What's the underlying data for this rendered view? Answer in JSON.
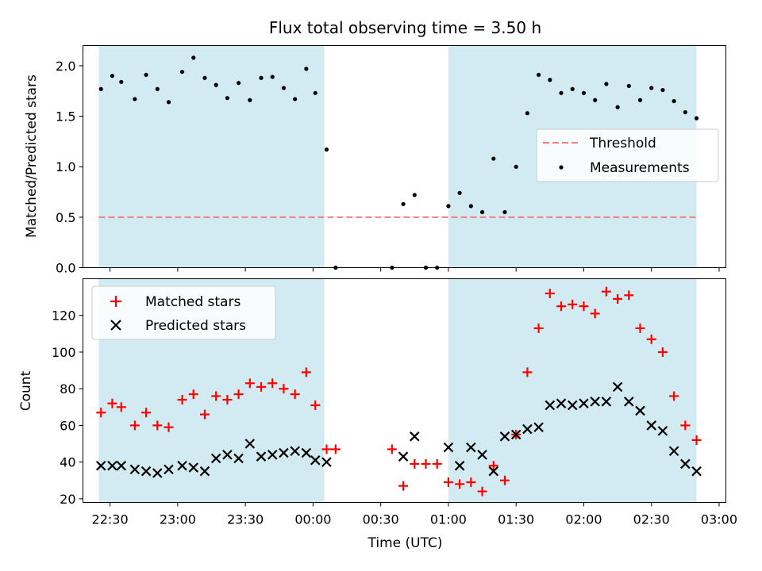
{
  "title": "Flux total observing time = 3.50 h",
  "xlabel": "Time (UTC)",
  "x_tick_labels": [
    "22:30",
    "23:00",
    "23:30",
    "00:00",
    "00:30",
    "01:00",
    "01:30",
    "02:00",
    "02:30",
    "03:00"
  ],
  "shaded_intervals": [
    [
      "22:25",
      "00:05"
    ],
    [
      "01:00",
      "02:50"
    ]
  ],
  "colors": {
    "shade": "#add8e6",
    "threshold": "#f08080",
    "matched": "#ff0000",
    "predicted": "#000000",
    "measurements": "#000000"
  },
  "chart_data": [
    {
      "type": "scatter",
      "ylabel": "Matched/Predicted stars",
      "ylim": [
        0,
        2.2
      ],
      "yticks": [
        "0.0",
        "0.5",
        "1.0",
        "1.5",
        "2.0"
      ],
      "legend_position": "center-right",
      "legend": [
        "Threshold",
        "Measurements"
      ],
      "threshold": 0.5,
      "threshold_range": [
        "22:25",
        "02:50"
      ],
      "series": [
        {
          "name": "Measurements",
          "marker": "dot",
          "points": [
            [
              "22:26",
              1.77
            ],
            [
              "22:31",
              1.9
            ],
            [
              "22:35",
              1.84
            ],
            [
              "22:41",
              1.67
            ],
            [
              "22:46",
              1.91
            ],
            [
              "22:51",
              1.77
            ],
            [
              "22:56",
              1.64
            ],
            [
              "23:02",
              1.94
            ],
            [
              "23:07",
              2.08
            ],
            [
              "23:12",
              1.88
            ],
            [
              "23:17",
              1.81
            ],
            [
              "23:22",
              1.68
            ],
            [
              "23:27",
              1.83
            ],
            [
              "23:32",
              1.66
            ],
            [
              "23:37",
              1.88
            ],
            [
              "23:42",
              1.89
            ],
            [
              "23:47",
              1.78
            ],
            [
              "23:52",
              1.67
            ],
            [
              "23:57",
              1.97
            ],
            [
              "00:01",
              1.73
            ],
            [
              "00:06",
              1.17
            ],
            [
              "00:10",
              0.0
            ],
            [
              "00:35",
              0.0
            ],
            [
              "00:40",
              0.63
            ],
            [
              "00:45",
              0.72
            ],
            [
              "00:50",
              0.0
            ],
            [
              "00:55",
              0.0
            ],
            [
              "01:00",
              0.61
            ],
            [
              "01:05",
              0.74
            ],
            [
              "01:10",
              0.61
            ],
            [
              "01:15",
              0.55
            ],
            [
              "01:20",
              1.08
            ],
            [
              "01:25",
              0.55
            ],
            [
              "01:30",
              1.0
            ],
            [
              "01:35",
              1.53
            ],
            [
              "01:40",
              1.91
            ],
            [
              "01:45",
              1.86
            ],
            [
              "01:50",
              1.73
            ],
            [
              "01:55",
              1.77
            ],
            [
              "02:00",
              1.73
            ],
            [
              "02:05",
              1.66
            ],
            [
              "02:10",
              1.82
            ],
            [
              "02:15",
              1.59
            ],
            [
              "02:20",
              1.8
            ],
            [
              "02:25",
              1.66
            ],
            [
              "02:30",
              1.78
            ],
            [
              "02:35",
              1.76
            ],
            [
              "02:40",
              1.65
            ],
            [
              "02:45",
              1.54
            ],
            [
              "02:50",
              1.48
            ]
          ]
        }
      ]
    },
    {
      "type": "scatter",
      "ylabel": "Count",
      "ylim": [
        18,
        140
      ],
      "yticks": [
        "20",
        "40",
        "60",
        "80",
        "100",
        "120"
      ],
      "legend_position": "top-left",
      "series": [
        {
          "name": "Matched stars",
          "marker": "plus",
          "points": [
            [
              "22:26",
              67
            ],
            [
              "22:31",
              72
            ],
            [
              "22:35",
              70
            ],
            [
              "22:41",
              60
            ],
            [
              "22:46",
              67
            ],
            [
              "22:51",
              60
            ],
            [
              "22:56",
              59
            ],
            [
              "23:02",
              74
            ],
            [
              "23:07",
              77
            ],
            [
              "23:12",
              66
            ],
            [
              "23:17",
              76
            ],
            [
              "23:22",
              74
            ],
            [
              "23:27",
              77
            ],
            [
              "23:32",
              83
            ],
            [
              "23:37",
              81
            ],
            [
              "23:42",
              83
            ],
            [
              "23:47",
              80
            ],
            [
              "23:52",
              77
            ],
            [
              "23:57",
              89
            ],
            [
              "00:01",
              71
            ],
            [
              "00:06",
              47
            ],
            [
              "00:10",
              47
            ],
            [
              "00:35",
              47
            ],
            [
              "00:40",
              27
            ],
            [
              "00:45",
              39
            ],
            [
              "00:50",
              39
            ],
            [
              "00:55",
              39
            ],
            [
              "01:00",
              29
            ],
            [
              "01:05",
              28
            ],
            [
              "01:10",
              29
            ],
            [
              "01:15",
              24
            ],
            [
              "01:20",
              38
            ],
            [
              "01:25",
              30
            ],
            [
              "01:30",
              55
            ],
            [
              "01:35",
              89
            ],
            [
              "01:40",
              113
            ],
            [
              "01:45",
              132
            ],
            [
              "01:50",
              125
            ],
            [
              "01:55",
              126
            ],
            [
              "02:00",
              125
            ],
            [
              "02:05",
              121
            ],
            [
              "02:10",
              133
            ],
            [
              "02:15",
              129
            ],
            [
              "02:20",
              131
            ],
            [
              "02:25",
              113
            ],
            [
              "02:30",
              107
            ],
            [
              "02:35",
              100
            ],
            [
              "02:40",
              76
            ],
            [
              "02:45",
              60
            ],
            [
              "02:50",
              52
            ]
          ]
        },
        {
          "name": "Predicted stars",
          "marker": "x",
          "points": [
            [
              "22:26",
              38
            ],
            [
              "22:31",
              38
            ],
            [
              "22:35",
              38
            ],
            [
              "22:41",
              36
            ],
            [
              "22:46",
              35
            ],
            [
              "22:51",
              34
            ],
            [
              "22:56",
              36
            ],
            [
              "23:02",
              38
            ],
            [
              "23:07",
              37
            ],
            [
              "23:12",
              35
            ],
            [
              "23:17",
              42
            ],
            [
              "23:22",
              44
            ],
            [
              "23:27",
              42
            ],
            [
              "23:32",
              50
            ],
            [
              "23:37",
              43
            ],
            [
              "23:42",
              44
            ],
            [
              "23:47",
              45
            ],
            [
              "23:52",
              46
            ],
            [
              "23:57",
              45
            ],
            [
              "00:01",
              41
            ],
            [
              "00:06",
              40
            ],
            [
              "00:40",
              43
            ],
            [
              "00:45",
              54
            ],
            [
              "01:00",
              48
            ],
            [
              "01:05",
              38
            ],
            [
              "01:10",
              48
            ],
            [
              "01:15",
              44
            ],
            [
              "01:20",
              35
            ],
            [
              "01:25",
              54
            ],
            [
              "01:30",
              55
            ],
            [
              "01:35",
              58
            ],
            [
              "01:40",
              59
            ],
            [
              "01:45",
              71
            ],
            [
              "01:50",
              72
            ],
            [
              "01:55",
              71
            ],
            [
              "02:00",
              72
            ],
            [
              "02:05",
              73
            ],
            [
              "02:10",
              73
            ],
            [
              "02:15",
              81
            ],
            [
              "02:20",
              73
            ],
            [
              "02:25",
              68
            ],
            [
              "02:30",
              60
            ],
            [
              "02:35",
              57
            ],
            [
              "02:40",
              46
            ],
            [
              "02:45",
              39
            ],
            [
              "02:50",
              35
            ]
          ]
        }
      ]
    }
  ]
}
